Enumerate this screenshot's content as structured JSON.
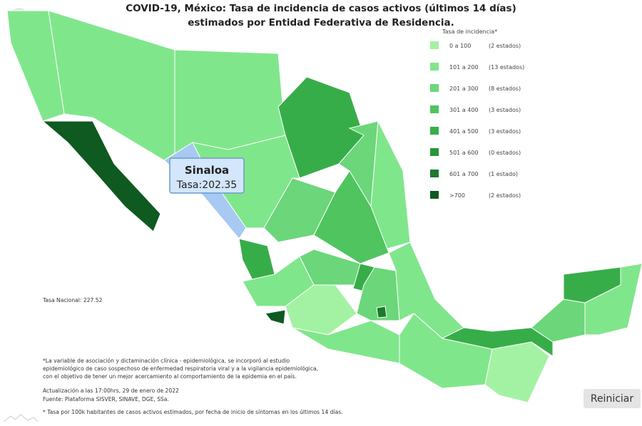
{
  "header": {
    "title_line1": "COVID-19, México: Tasa de incidencia de casos activos (últimos 14 días)",
    "title_line2": "estimados por Entidad Federativa de Residencia."
  },
  "legend": {
    "title": "Tasa de incidencia*",
    "items": [
      {
        "range": "0 a 100",
        "count": "(2 estados)",
        "color": "#a3f2a3"
      },
      {
        "range": "101 a  200",
        "count": "(13 estados)",
        "color": "#80e68c"
      },
      {
        "range": "201 a  300",
        "count": "(8 estados)",
        "color": "#6bd67a"
      },
      {
        "range": "301 a  400",
        "count": "(3 estados)",
        "color": "#4fc45f"
      },
      {
        "range": "401 a 500",
        "count": "(3 estados)",
        "color": "#37ad49"
      },
      {
        "range": "501 a 600",
        "count": "(0 estados)",
        "color": "#28953b"
      },
      {
        "range": "601 a 700",
        "count": "(1 estado)",
        "color": "#1b7a2e"
      },
      {
        "range": ">700",
        "count": "(2 estados)",
        "color": "#0e5a20"
      }
    ]
  },
  "tooltip": {
    "name": "Sinaloa",
    "text": "Tasa:202.35"
  },
  "national_rate": "Tasa Nacional: 227.52",
  "notes": {
    "methodology": [
      "*La variable de asociación y dictaminación clínica - epidemiológica, se incorporó al estudio",
      "epidemiológico de caso sospechoso de enfermedad respiratoria viral y a la vigilancia epidemiológica,",
      "con el objetivo de tener un mejor acercamiento al comportamiento de la epidemia en el país."
    ],
    "update": "Actualización a las 17:00hrs, 29 de enero de 2022",
    "source": "Fuente: Plataforma SISVER, SINAVE, DGE, SSa.",
    "footnote": "* Tasa por 100k habitantes de casos activos estimados, por fecha de inicio de síntomas en los últimos 14 días."
  },
  "button": "Reiniciar"
}
